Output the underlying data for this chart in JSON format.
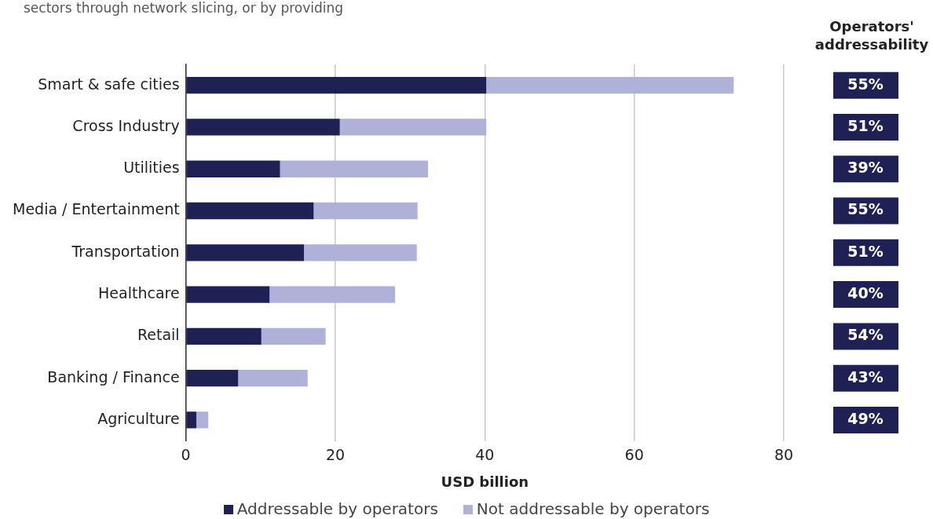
{
  "chart_data": {
    "type": "bar",
    "orientation": "horizontal",
    "stacked": true,
    "xlabel": "USD billion",
    "categories": [
      "Smart & safe cities",
      "Cross Industry",
      "Utilities",
      "Media / Entertainment",
      "Transportation",
      "Healthcare",
      "Retail",
      "Banking / Finance",
      "Agriculture"
    ],
    "series": [
      {
        "name": "Addressable by operators",
        "color": "#1f2054",
        "values": [
          40.2,
          20.6,
          12.6,
          17.1,
          15.8,
          11.2,
          10.1,
          7.0,
          1.4
        ]
      },
      {
        "name": "Not addressable by operators",
        "color": "#afb1d8",
        "values": [
          33.1,
          19.6,
          19.8,
          13.9,
          15.1,
          16.8,
          8.6,
          9.3,
          1.6
        ]
      }
    ],
    "xlim": [
      0,
      80
    ],
    "xticks": [
      0,
      20,
      40,
      60,
      80
    ],
    "grid": "x",
    "legend": "bottom",
    "annotations": [
      "sectors through network slicing, or by providing",
      "Operators' addressability",
      "55%",
      "51%",
      "39%",
      "55%",
      "51%",
      "40%",
      "54%",
      "43%",
      "49%"
    ]
  }
}
